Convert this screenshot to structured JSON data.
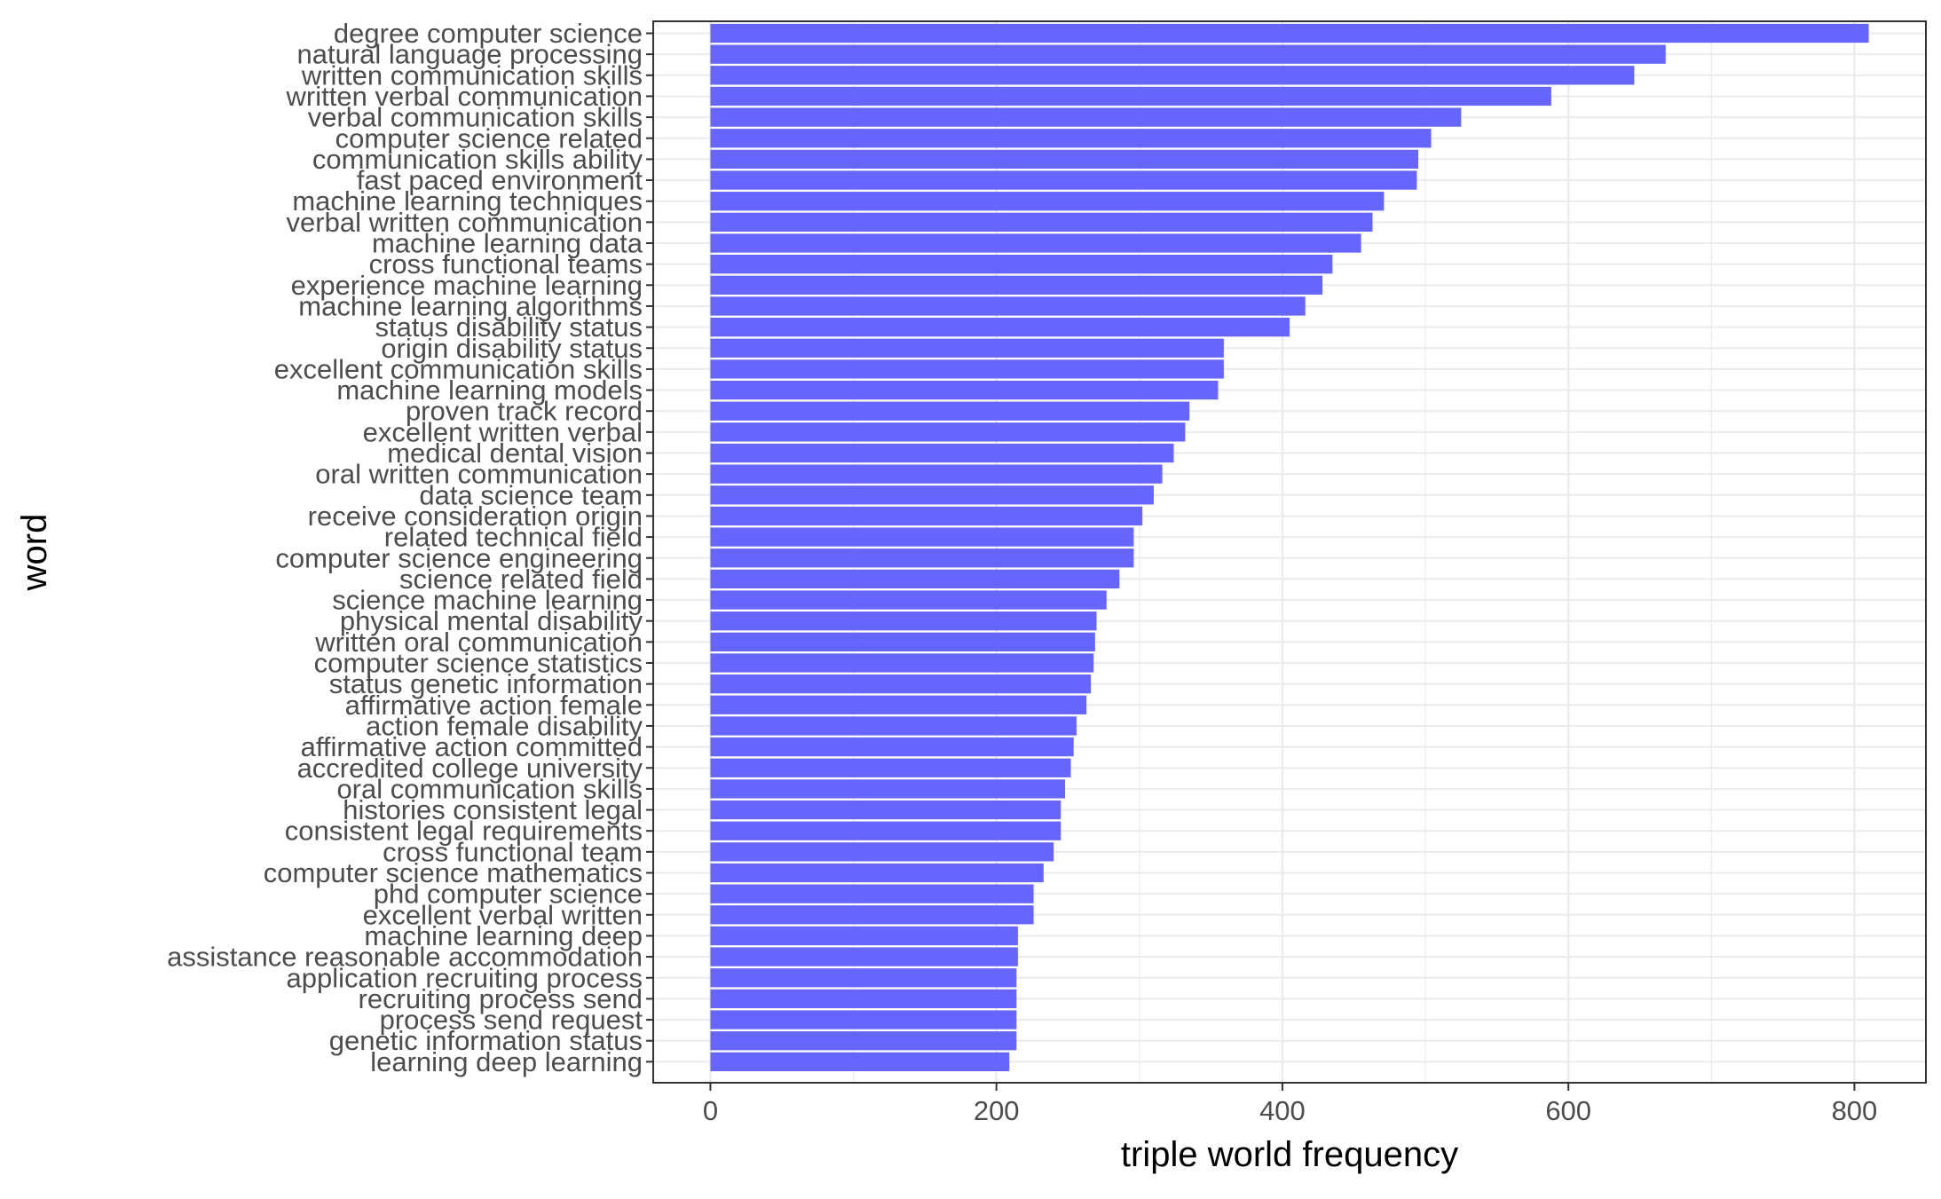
{
  "chart_data": {
    "type": "bar",
    "orientation": "horizontal",
    "xlabel": "triple world frequency",
    "ylabel": "word",
    "xlim": [
      -40,
      850
    ],
    "x_ticks": [
      0,
      200,
      400,
      600,
      800
    ],
    "x_tick_labels": [
      "0",
      "200",
      "400",
      "600",
      "800"
    ],
    "grid": true,
    "bar_color": "#6666ff",
    "categories": [
      "degree computer science",
      "natural language processing",
      "written communication skills",
      "written verbal communication",
      "verbal communication skills",
      "computer science related",
      "communication skills ability",
      "fast paced environment",
      "machine learning techniques",
      "verbal written communication",
      "machine learning data",
      "cross functional teams",
      "experience machine learning",
      "machine learning algorithms",
      "status disability status",
      "origin disability status",
      "excellent communication skills",
      "machine learning models",
      "proven track record",
      "excellent written verbal",
      "medical dental vision",
      "oral written communication",
      "data science team",
      "receive consideration origin",
      "related technical field",
      "computer science engineering",
      "science related field",
      "science machine learning",
      "physical mental disability",
      "written oral communication",
      "computer science statistics",
      "status genetic information",
      "affirmative action female",
      "action female disability",
      "affirmative action committed",
      "accredited college university",
      "oral communication skills",
      "histories consistent legal",
      "consistent legal requirements",
      "cross functional team",
      "computer science mathematics",
      "phd computer science",
      "excellent verbal written",
      "machine learning deep",
      "assistance reasonable accommodation",
      "application recruiting process",
      "recruiting process send",
      "process send request",
      "genetic information status",
      "learning deep learning"
    ],
    "values": [
      810,
      668,
      646,
      588,
      525,
      504,
      495,
      494,
      471,
      463,
      455,
      435,
      428,
      416,
      405,
      359,
      359,
      355,
      335,
      332,
      324,
      316,
      310,
      302,
      296,
      296,
      286,
      277,
      270,
      269,
      268,
      266,
      263,
      256,
      254,
      252,
      248,
      245,
      245,
      240,
      233,
      226,
      226,
      215,
      215,
      214,
      214,
      214,
      214,
      209
    ]
  }
}
